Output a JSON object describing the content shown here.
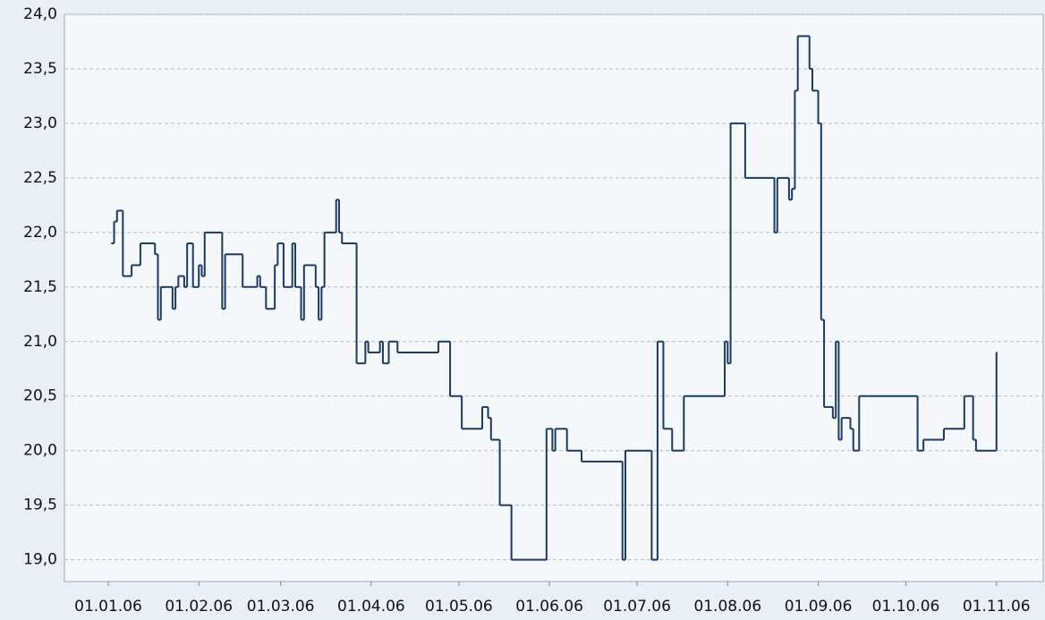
{
  "chart_data": {
    "type": "line",
    "step": true,
    "x": [
      "02.01.06",
      "03.01.06",
      "04.01.06",
      "06.01.06",
      "09.01.06",
      "12.01.06",
      "17.01.06",
      "18.01.06",
      "19.01.06",
      "23.01.06",
      "24.01.06",
      "25.01.06",
      "27.01.06",
      "28.01.06",
      "30.01.06",
      "01.02.06",
      "02.02.06",
      "03.02.06",
      "09.02.06",
      "10.02.06",
      "16.02.06",
      "21.02.06",
      "22.02.06",
      "24.02.06",
      "27.02.06",
      "28.02.06",
      "02.03.06",
      "05.03.06",
      "06.03.06",
      "08.03.06",
      "09.03.06",
      "13.03.06",
      "14.03.06",
      "15.03.06",
      "16.03.06",
      "20.03.06",
      "21.03.06",
      "22.03.06",
      "27.03.06",
      "30.03.06",
      "31.03.06",
      "04.04.06",
      "05.04.06",
      "07.04.06",
      "10.04.06",
      "24.04.06",
      "28.04.06",
      "02.05.06",
      "09.05.06",
      "11.05.06",
      "12.05.06",
      "15.05.06",
      "19.05.06",
      "31.05.06",
      "02.06.06",
      "03.06.06",
      "07.06.06",
      "12.06.06",
      "26.06.06",
      "27.06.06",
      "06.07.06",
      "08.07.06",
      "10.07.06",
      "13.07.06",
      "17.07.06",
      "31.07.06",
      "01.08.06",
      "02.08.06",
      "07.08.06",
      "17.08.06",
      "18.08.06",
      "22.08.06",
      "23.08.06",
      "24.08.06",
      "25.08.06",
      "29.08.06",
      "30.08.06",
      "01.09.06",
      "02.09.06",
      "03.09.06",
      "06.09.06",
      "07.09.06",
      "08.09.06",
      "09.09.06",
      "12.09.06",
      "13.09.06",
      "15.09.06",
      "05.10.06",
      "07.10.06",
      "14.10.06",
      "21.10.06",
      "24.10.06",
      "25.10.06",
      "01.11.06"
    ],
    "series": [
      {
        "color": "#1b3a63",
        "values": [
          21.9,
          22.1,
          22.2,
          21.6,
          21.7,
          21.9,
          21.8,
          21.2,
          21.5,
          21.3,
          21.5,
          21.6,
          21.5,
          21.9,
          21.5,
          21.7,
          21.6,
          22.0,
          21.3,
          21.8,
          21.5,
          21.6,
          21.5,
          21.3,
          21.7,
          21.9,
          21.5,
          21.9,
          21.5,
          21.2,
          21.7,
          21.5,
          21.2,
          21.5,
          22.0,
          22.3,
          22.0,
          21.9,
          20.8,
          21.0,
          20.9,
          21.0,
          20.8,
          21.0,
          20.9,
          21.0,
          20.5,
          20.2,
          20.4,
          20.3,
          20.1,
          19.5,
          19.0,
          20.2,
          20.0,
          20.2,
          20.0,
          19.9,
          19.0,
          20.0,
          19.0,
          21.0,
          20.2,
          20.0,
          20.5,
          21.0,
          20.8,
          23.0,
          22.5,
          22.0,
          22.5,
          22.3,
          22.4,
          23.3,
          23.8,
          23.5,
          23.3,
          23.0,
          21.2,
          20.4,
          20.3,
          21.0,
          20.1,
          20.3,
          20.2,
          20.0,
          20.5,
          20.0,
          20.1,
          20.2,
          20.5,
          20.1,
          20.0,
          20.9
        ]
      }
    ],
    "xlim": [
      "17.12.05",
      "17.11.06"
    ],
    "xticks": [
      "01.01.06",
      "01.02.06",
      "01.03.06",
      "01.04.06",
      "01.05.06",
      "01.06.06",
      "01.07.06",
      "01.08.06",
      "01.09.06",
      "01.10.06",
      "01.11.06"
    ],
    "ylim": [
      18.8,
      24.0
    ],
    "yticks": [
      {
        "value": 19,
        "label": "19,0"
      },
      {
        "value": 19.5,
        "label": "19,5"
      },
      {
        "value": 20,
        "label": "20,0"
      },
      {
        "value": 20.5,
        "label": "20,5"
      },
      {
        "value": 21,
        "label": "21,0"
      },
      {
        "value": 21.5,
        "label": "21,5"
      },
      {
        "value": 22,
        "label": "22,0"
      },
      {
        "value": 22.5,
        "label": "22,5"
      },
      {
        "value": 23,
        "label": "23,0"
      },
      {
        "value": 23.5,
        "label": "23,5"
      },
      {
        "value": 24,
        "label": "24,0"
      }
    ],
    "grid": true
  }
}
